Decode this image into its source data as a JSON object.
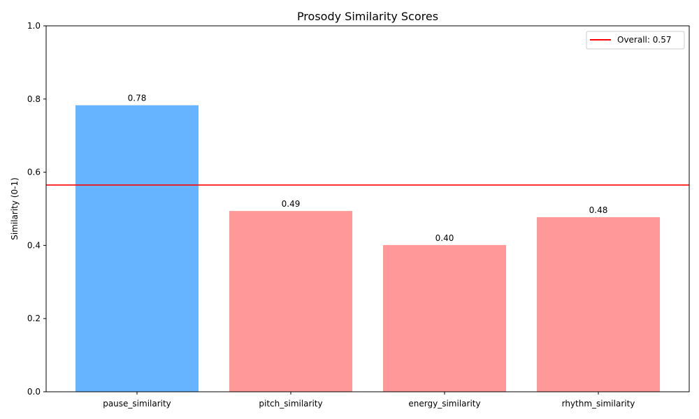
{
  "chart_data": {
    "type": "bar",
    "title": "Prosody Similarity Scores",
    "xlabel": "",
    "ylabel": "Similarity (0-1)",
    "ylim": [
      0,
      1.0
    ],
    "yticks": [
      "0.0",
      "0.2",
      "0.4",
      "0.6",
      "0.8",
      "1.0"
    ],
    "categories": [
      "pause_similarity",
      "pitch_similarity",
      "energy_similarity",
      "rhythm_similarity"
    ],
    "values": [
      0.783,
      0.494,
      0.401,
      0.477
    ],
    "value_labels": [
      "0.78",
      "0.49",
      "0.40",
      "0.48"
    ],
    "bar_colors": [
      "#66b3ff",
      "#ff9999",
      "#ff9999",
      "#ff9999"
    ],
    "reference_line": {
      "value": 0.565,
      "label": "Overall: 0.57",
      "color": "#ff0000"
    },
    "grid": false,
    "legend_position": "top-right"
  }
}
